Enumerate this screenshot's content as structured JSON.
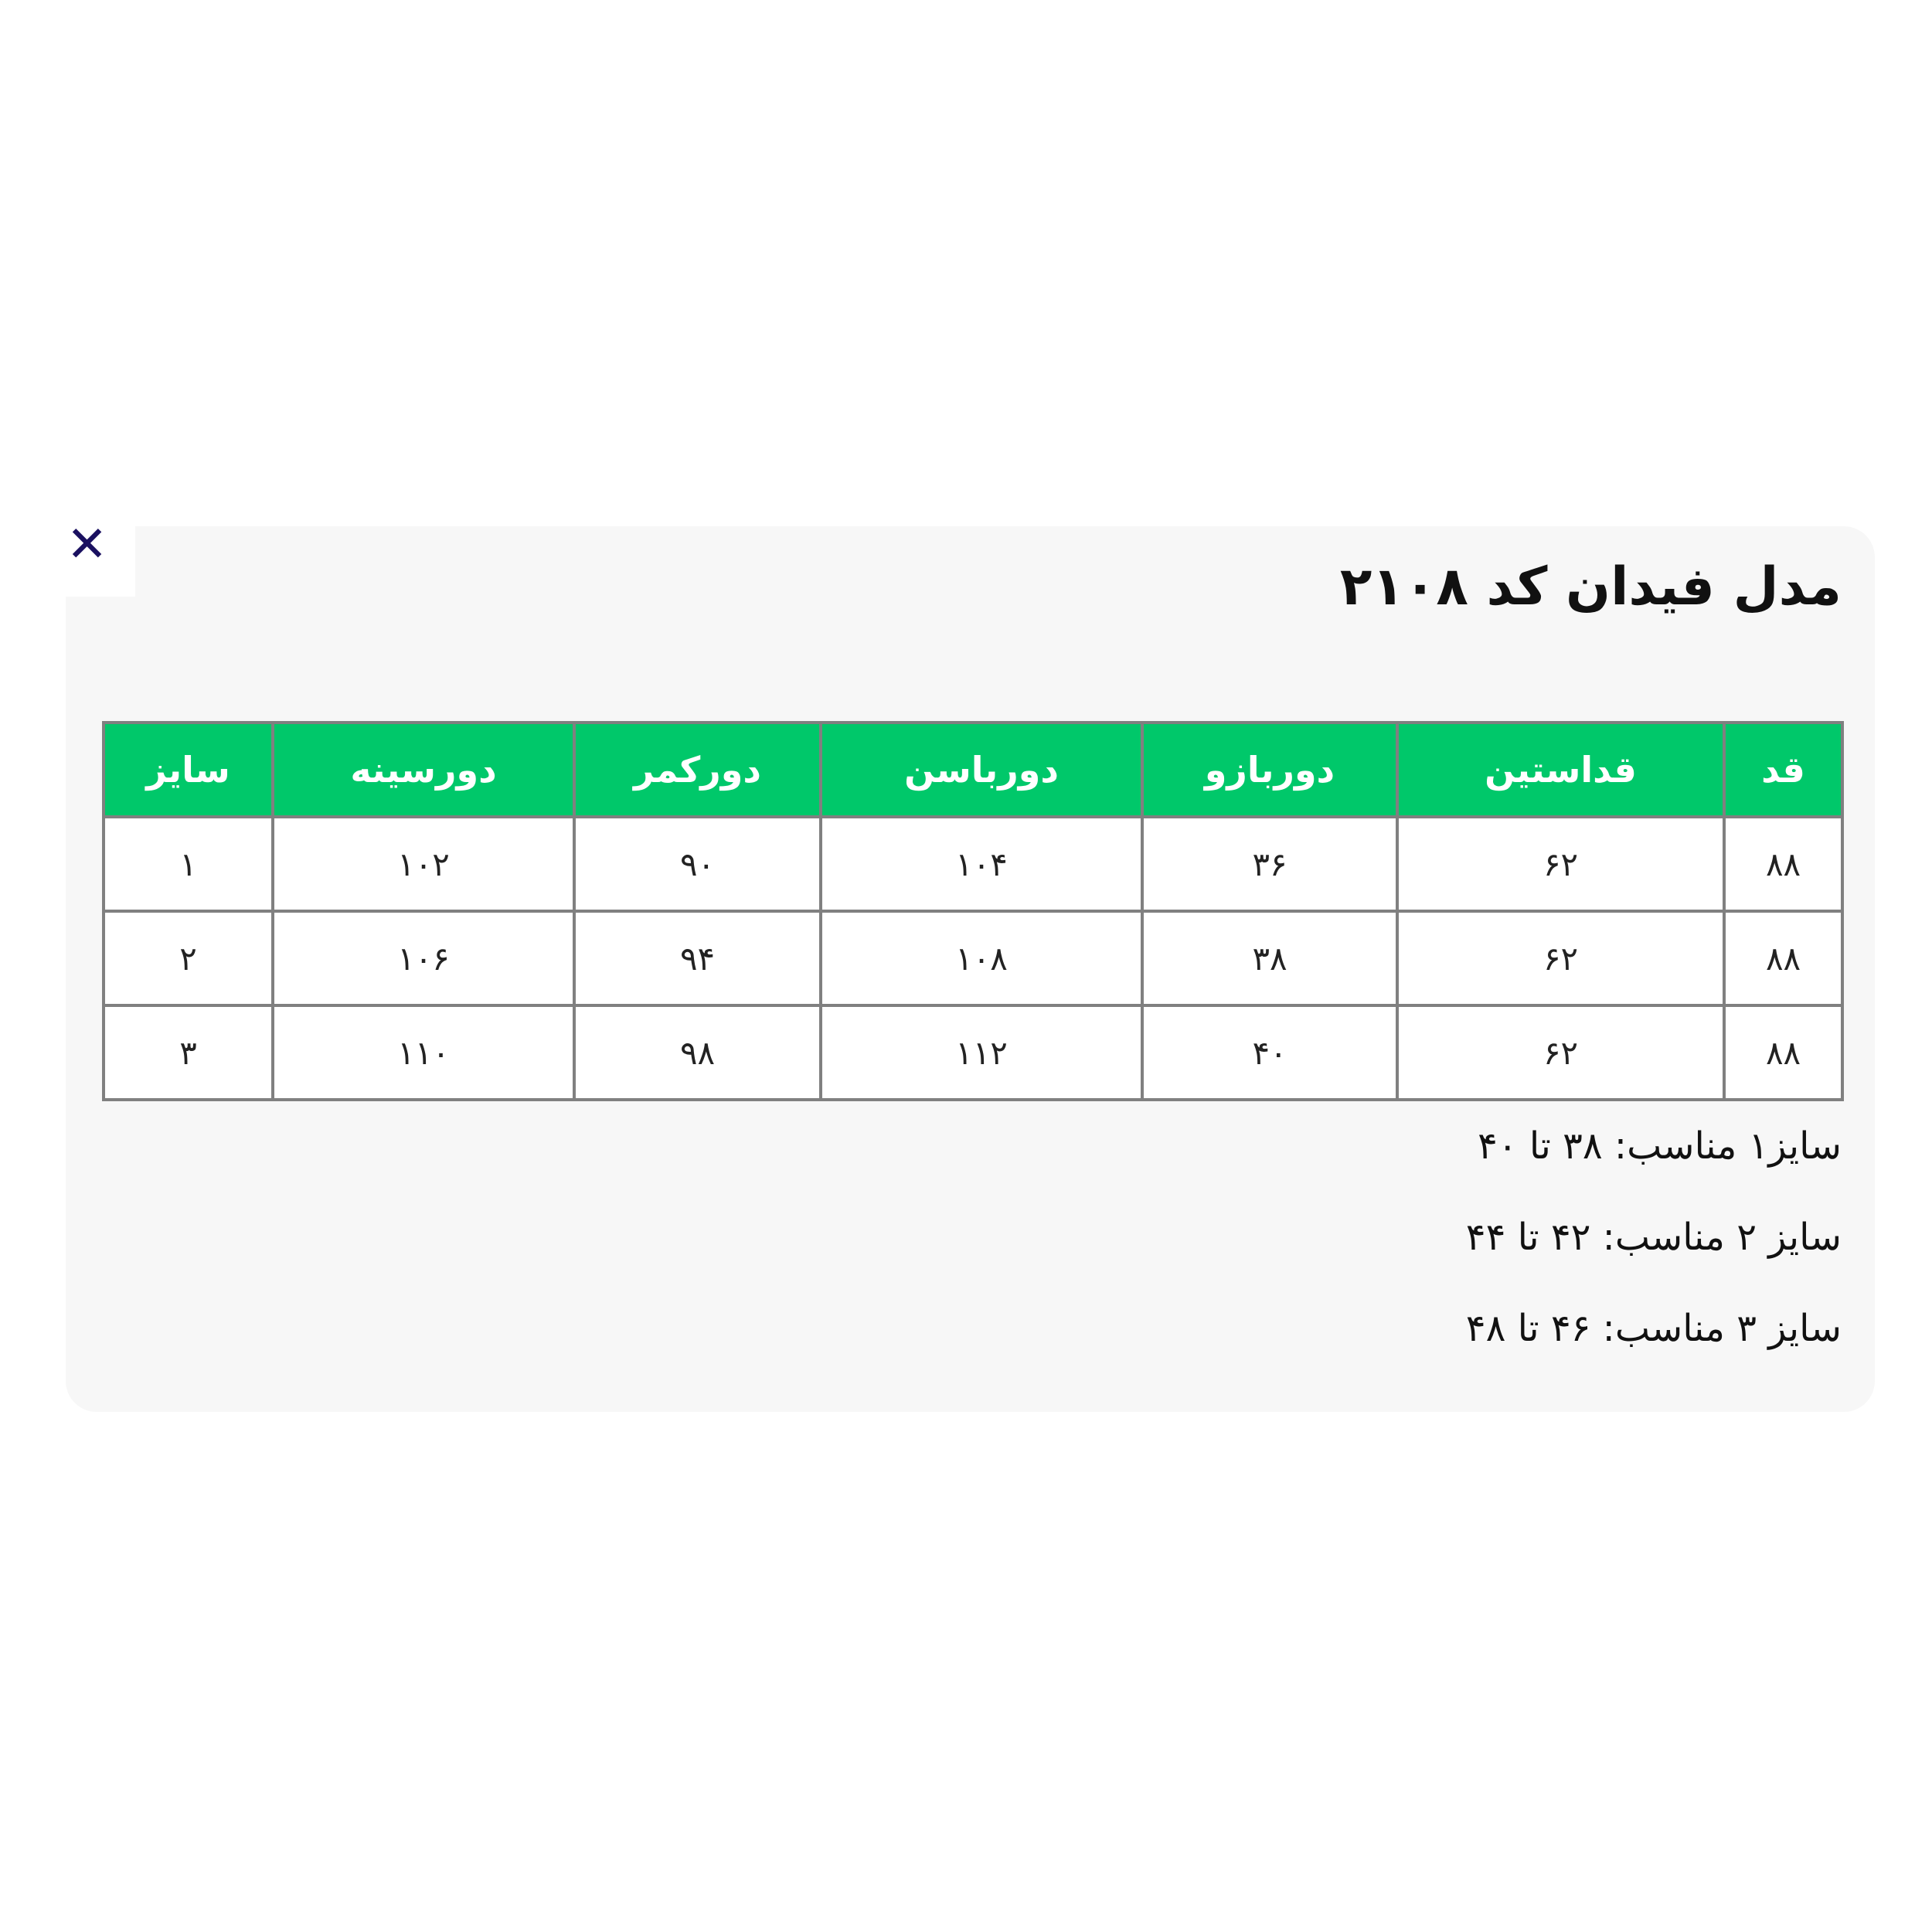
{
  "close_icon": "close-icon",
  "close_symbol": "✕",
  "title": "مدل فیدان کد ۲۱۰۸",
  "colors": {
    "header_bg": "#00c86a",
    "panel_bg": "#f7f7f7",
    "border": "#808080"
  },
  "table": {
    "headers": [
      "قد",
      "قداستین",
      "دوربازو",
      "دورباسن",
      "دورکمر",
      "دورسینه",
      "سایز"
    ],
    "rows": [
      [
        "۸۸",
        "۶۲",
        "۳۶",
        "۱۰۴",
        "۹۰",
        "۱۰۲",
        "۱"
      ],
      [
        "۸۸",
        "۶۲",
        "۳۸",
        "۱۰۸",
        "۹۴",
        "۱۰۶",
        "۲"
      ],
      [
        "۸۸",
        "۶۲",
        "۴۰",
        "۱۱۲",
        "۹۸",
        "۱۱۰",
        "۳"
      ]
    ]
  },
  "notes": [
    "سایز۱ مناسب: ۳۸ تا ۴۰",
    "سایز ۲ مناسب: ۴۲ تا ۴۴",
    "سایز ۳ مناسب: ۴۶ تا ۴۸"
  ]
}
